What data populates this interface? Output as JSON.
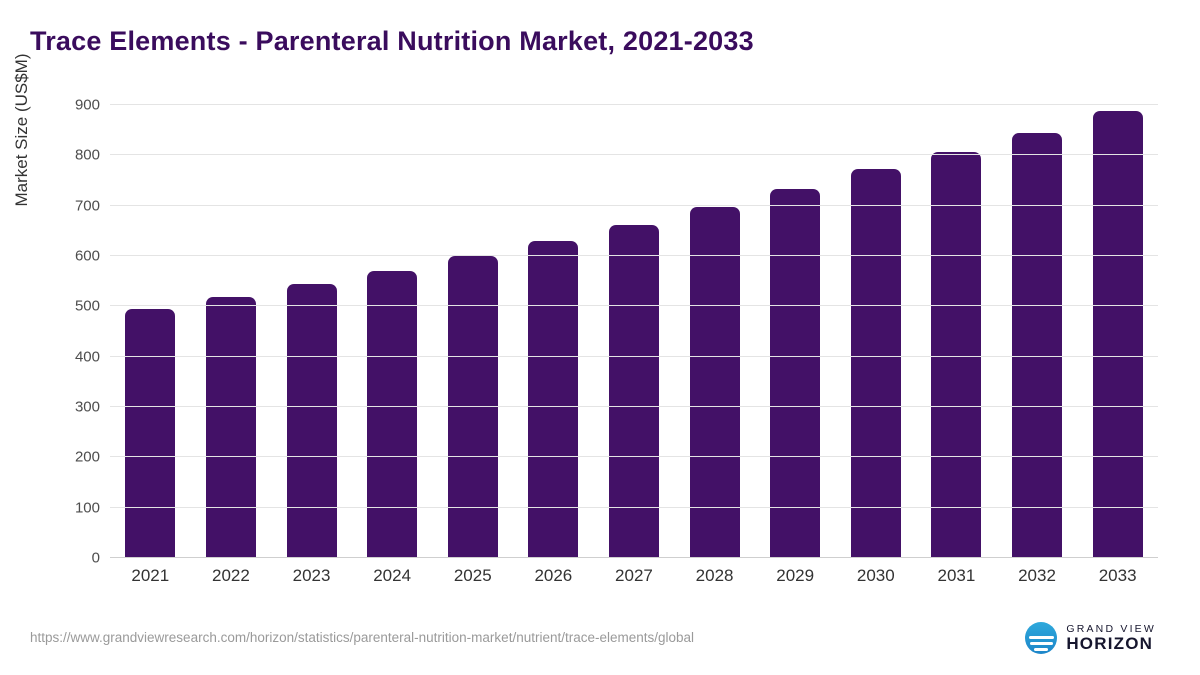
{
  "header": {
    "title": "Trace Elements - Parenteral Nutrition Market, 2021-2033"
  },
  "chart_data": {
    "type": "bar",
    "title": "Trace Elements - Parenteral Nutrition Market, 2021-2033",
    "categories": [
      "2021",
      "2022",
      "2023",
      "2024",
      "2025",
      "2026",
      "2027",
      "2028",
      "2029",
      "2030",
      "2031",
      "2032",
      "2033"
    ],
    "values": [
      495,
      518,
      544,
      570,
      600,
      630,
      661,
      697,
      733,
      773,
      807,
      845,
      888
    ],
    "xlabel": "",
    "ylabel": "Market Size (US$M)",
    "ylim": [
      0,
      900
    ],
    "yticks": [
      0,
      100,
      200,
      300,
      400,
      500,
      600,
      700,
      800,
      900
    ],
    "grid": "horizontal",
    "legend": "none",
    "bar_color": "#431167"
  },
  "footer": {
    "source_url": "https://www.grandviewresearch.com/horizon/statistics/parenteral-nutrition-market/nutrient/trace-elements/global",
    "logo": {
      "top_text": "GRAND VIEW",
      "bottom_text": "HORIZON",
      "icon": "horizon-sun-over-water-icon",
      "icon_color": "#2496d3"
    }
  }
}
